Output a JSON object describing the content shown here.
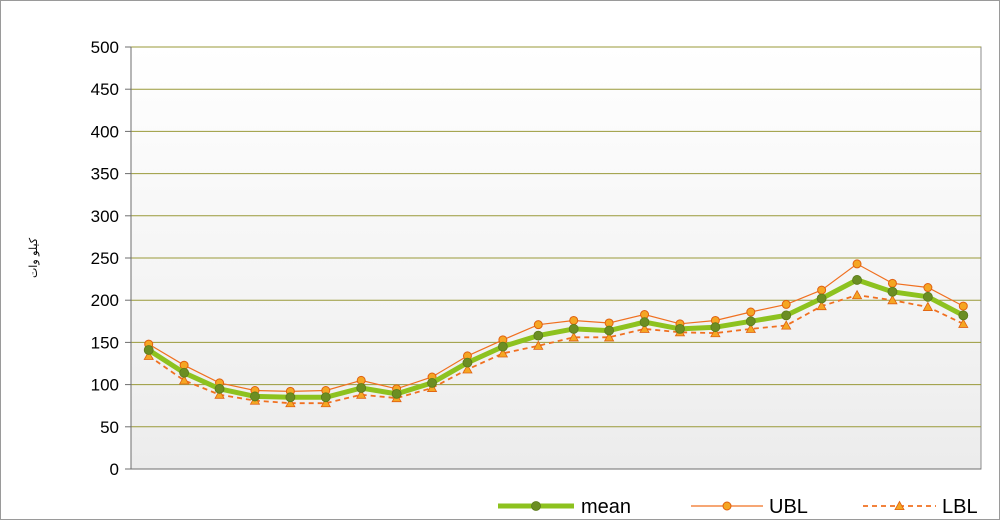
{
  "chart_data": {
    "type": "line",
    "title": "",
    "xlabel": "",
    "ylabel": "کیلو وات",
    "ylim": [
      0,
      500
    ],
    "yticks": [
      0,
      50,
      100,
      150,
      200,
      250,
      300,
      350,
      400,
      450,
      500
    ],
    "x": [
      1,
      2,
      3,
      4,
      5,
      6,
      7,
      8,
      9,
      10,
      11,
      12,
      13,
      14,
      15,
      16,
      17,
      18,
      19,
      20,
      21,
      22,
      23,
      24
    ],
    "grid": true,
    "legend_position": "bottom-right",
    "series": [
      {
        "name": "mean",
        "color": "#8dc21f",
        "marker_color": "#6b8e23",
        "values": [
          141,
          114,
          95,
          86,
          85,
          85,
          96,
          89,
          102,
          126,
          145,
          158,
          166,
          164,
          174,
          166,
          168,
          175,
          182,
          202,
          224,
          210,
          204,
          182
        ]
      },
      {
        "name": "UBL",
        "color": "#f07020",
        "marker_color": "#f5a623",
        "values": [
          148,
          123,
          102,
          93,
          92,
          93,
          105,
          95,
          109,
          134,
          153,
          171,
          176,
          173,
          183,
          172,
          176,
          186,
          195,
          212,
          243,
          220,
          215,
          193
        ]
      },
      {
        "name": "LBL",
        "color": "#f07020",
        "marker_color": "#f5a623",
        "values": [
          134,
          105,
          88,
          81,
          78,
          78,
          88,
          84,
          96,
          118,
          137,
          146,
          156,
          156,
          166,
          162,
          161,
          166,
          170,
          193,
          206,
          200,
          192,
          172
        ]
      }
    ]
  }
}
